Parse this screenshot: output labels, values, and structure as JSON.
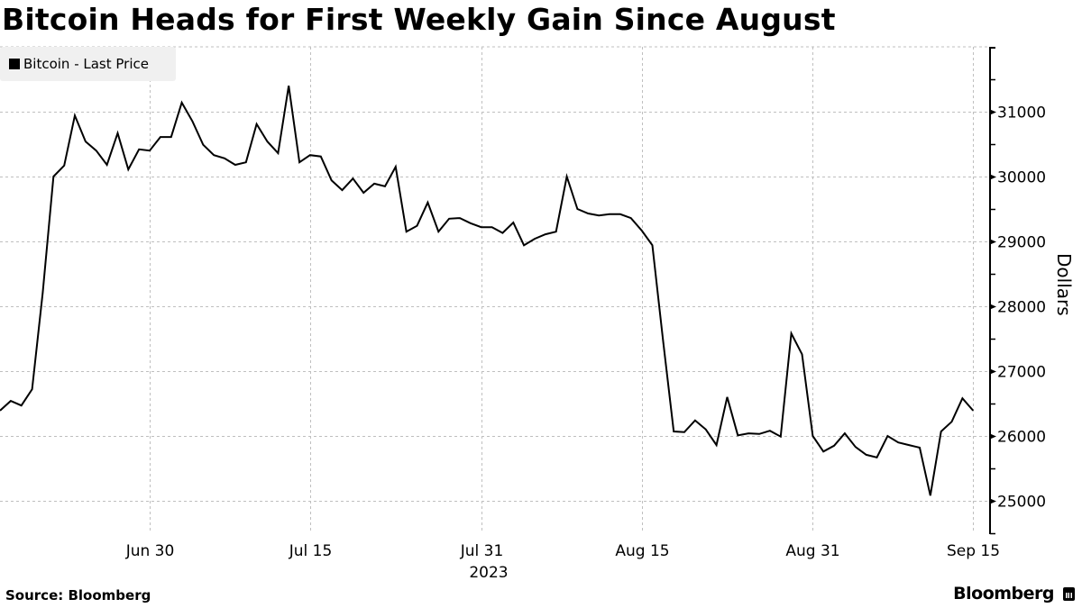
{
  "header": {
    "title": "Bitcoin Heads for First Weekly Gain Since August"
  },
  "legend": {
    "items": [
      {
        "label": "Bitcoin - Last Price",
        "color": "#000000"
      }
    ]
  },
  "footer": {
    "source": "Source: Bloomberg",
    "brand": "Bloomberg"
  },
  "colors": {
    "line": "#000000",
    "grid": "#bfbfbf",
    "legend_bg": "#f0f0f0",
    "background": "#ffffff"
  },
  "chart_data": {
    "type": "line",
    "title": "Bitcoin Heads for First Weekly Gain Since August",
    "xlabel": "2023",
    "ylabel": "Dollars",
    "ylim": [
      24500,
      32000
    ],
    "yticks": [
      25000,
      26000,
      27000,
      28000,
      29000,
      30000,
      31000
    ],
    "xticks": [
      {
        "label": "Jun 30",
        "index": 14
      },
      {
        "label": "Jul 15",
        "index": 29
      },
      {
        "label": "Jul 31",
        "index": 45
      },
      {
        "label": "Aug 15",
        "index": 60
      },
      {
        "label": "Aug 31",
        "index": 76
      },
      {
        "label": "Sep 15",
        "index": 91
      }
    ],
    "year_label": "2023",
    "grid": true,
    "legend_position": "top-left",
    "series": [
      {
        "name": "Bitcoin - Last Price",
        "start_date": "Jun 16",
        "end_date": "Sep 15",
        "frequency": "daily",
        "values": [
          26390,
          26540,
          26470,
          26720,
          28210,
          30000,
          30170,
          30940,
          30540,
          30400,
          30180,
          30670,
          30110,
          30420,
          30400,
          30610,
          30610,
          31140,
          30850,
          30490,
          30330,
          30280,
          30180,
          30220,
          30810,
          30540,
          30360,
          31400,
          30220,
          30330,
          30310,
          29940,
          29790,
          29970,
          29750,
          29890,
          29850,
          30150,
          29150,
          29240,
          29600,
          29150,
          29350,
          29360,
          29280,
          29220,
          29220,
          29130,
          29290,
          28940,
          29040,
          29110,
          29150,
          30000,
          29500,
          29430,
          29400,
          29420,
          29420,
          29360,
          29170,
          28940,
          27480,
          26070,
          26060,
          26240,
          26100,
          25860,
          26600,
          26010,
          26040,
          26030,
          26080,
          25990,
          27580,
          27260,
          26000,
          25760,
          25850,
          26040,
          25830,
          25710,
          25670,
          26000,
          25900,
          25860,
          25820,
          25080,
          26070,
          26220,
          26580,
          26390
        ]
      }
    ]
  }
}
